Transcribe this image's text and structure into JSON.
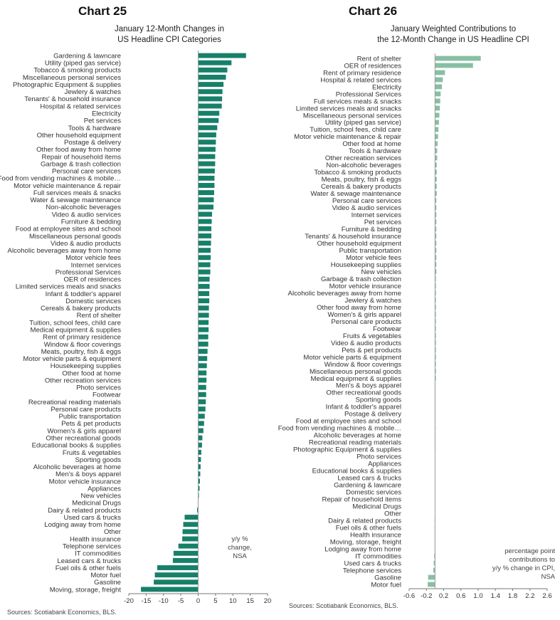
{
  "chart_data": [
    {
      "type": "bar",
      "orientation": "horizontal",
      "label": "Chart 25",
      "title": "January 12-Month Changes in\nUS Headline CPI Categories",
      "unit_note": "y/y %\nchange,\nNSA",
      "source": "Sources: Scotiabank Economics, BLS.",
      "xlim": [
        -20,
        20
      ],
      "xticks": [
        "-20",
        "-15",
        "-10",
        "-5",
        "0",
        "5",
        "10",
        "15",
        "20"
      ],
      "grid": false,
      "color": "#17806a",
      "categories": [
        "Gardening & lawncare",
        "Utility (piped gas service)",
        "Tobacco & smoking products",
        "Miscellaneous personal services",
        "Photographic Equipment & supplies",
        "Jewlery & watches",
        "Tenants' & household insurance",
        "Hospital & related services",
        "Electricity",
        "Pet services",
        "Tools & hardware",
        "Other household equipment",
        "Postage & delivery",
        "Other food away from home",
        "Repair of household items",
        "Garbage & trash collection",
        "Personal care services",
        "Food from vending machines & mobile…",
        "Motor vehicle maintenance & repair",
        "Full services meals & snacks",
        "Water & sewage maintenance",
        "Non-alcoholic beverages",
        "Video & audio services",
        "Furniture & bedding",
        "Food at employee sites and school",
        "Miscellaneous personal goods",
        "Video & audio products",
        "Alcoholic beverages away from home",
        "Motor vehicle fees",
        "Internet services",
        "Professional Services",
        "OER of residences",
        "Limited services meals and snacks",
        "Infant & toddler's apparel",
        "Domestic services",
        "Cereals & bakery products",
        "Rent of shelter",
        "Tuition, school fees, child care",
        "Medical equipment & supplies",
        "Rent of primary residence",
        "Window & floor coverings",
        "Meats, poultry, fish & eggs",
        "Motor vehicle parts & equipment",
        "Housekeeping supplies",
        "Other food at home",
        "Other recreation services",
        "Photo services",
        "Footwear",
        "Recreational reading materials",
        "Personal care products",
        "Public transportation",
        "Pets & pet products",
        "Women's & girls apparel",
        "Other recreational goods",
        "Educational books & supplies",
        "Fruits & vegetables",
        "Sporting goods",
        "Alcoholic beverages at home",
        "Men's & boys apparel",
        "Motor vehicle insurance",
        "Appliances",
        "New vehicles",
        "Medicinal Drugs",
        "Dairy & related products",
        "Used cars & trucks",
        "Lodging away from home",
        "Other",
        "Health insurance",
        "Telephone services",
        "IT commodities",
        "Leased cars & trucks",
        "Fuel oils & other fuels",
        "Motor fuel",
        "Gasoline",
        "Moving, storage, freight"
      ],
      "values": [
        13.8,
        9.6,
        8.4,
        8.0,
        7.3,
        7.0,
        6.9,
        6.8,
        6.1,
        5.9,
        5.5,
        5.2,
        5.1,
        5.0,
        4.9,
        4.9,
        4.8,
        4.7,
        4.7,
        4.6,
        4.5,
        4.4,
        4.0,
        3.9,
        3.8,
        3.8,
        3.7,
        3.6,
        3.6,
        3.5,
        3.5,
        3.3,
        3.3,
        3.2,
        3.2,
        3.1,
        3.1,
        3.0,
        3.0,
        2.9,
        2.9,
        2.7,
        2.6,
        2.5,
        2.4,
        2.4,
        2.3,
        2.3,
        2.2,
        2.1,
        1.9,
        1.7,
        1.5,
        1.2,
        1.1,
        0.9,
        0.8,
        0.7,
        0.6,
        0.5,
        0.4,
        0.2,
        0.1,
        -0.3,
        -3.9,
        -4.3,
        -4.5,
        -4.6,
        -5.7,
        -7.1,
        -7.3,
        -11.8,
        -12.5,
        -12.8,
        -16.5
      ]
    },
    {
      "type": "bar",
      "orientation": "horizontal",
      "label": "Chart 26",
      "title": "January Weighted Contributions to\nthe 12-Month Change in US Headline CPI",
      "unit_note": "percentage point\ncontributions to\ny/y % change in CPI,\nNSA",
      "source": "Sources: Scotiabank Economics, BLS.",
      "xlim": [
        -0.6,
        2.6
      ],
      "xticks": [
        "-0.6",
        "-0.2",
        "0.2",
        "0.6",
        "1.0",
        "1.4",
        "1.8",
        "2.2",
        "2.6"
      ],
      "grid": false,
      "color": "#88bfa4",
      "categories": [
        "Rent of shelter",
        "OER of residences",
        "Rent of  primary residence",
        "Hospital & related services",
        "Electricity",
        "Professional Services",
        "Full services meals & snacks",
        "Limited services meals and snacks",
        "Miscellaneous personal services",
        "Utility (piped gas service)",
        "Tuition, school fees, child care",
        "Motor vehicle maintenance & repair",
        "Other food at home",
        "Tools & hardware",
        "Other recreation services",
        "Non-alcoholic beverages",
        "Tobacco & smoking products",
        "Meats, poultry, fish & eggs",
        "Cereals & bakery products",
        "Water & sewage maintenance",
        "Personal care services",
        "Video & audio services",
        "Internet services",
        "Pet services",
        "Furniture & bedding",
        "Tenants' & household insurance",
        "Other household equipment",
        "Public transportation",
        "Motor vehicle fees",
        "Housekeeping supplies",
        "New vehicles",
        "Garbage & trash collection",
        "Motor vehicle insurance",
        "Alcoholic beverages away from home",
        "Jewlery & watches",
        "Other food away from home",
        "Women's & girls apparel",
        "Personal care products",
        "Footwear",
        "Fruits & vegetables",
        "Video & audio products",
        "Pets & pet products",
        "Motor vehicle parts & equipment",
        "Window & floor coverings",
        "Miscellaneous personal goods",
        "Medical equipment & supplies",
        "Men's & boys apparel",
        "Other recreational goods",
        "Sporting goods",
        "Infant & toddler's apparel",
        "Postage & delivery",
        "Food at employee sites and school",
        "Food from vending machines & mobile…",
        "Alcoholic beverages at home",
        "Recreational reading materials",
        "Photographic Equipment & supplies",
        "Photo services",
        "Appliances",
        "Educational books & supplies",
        "Leased cars & trucks",
        "Gardening & lawncare",
        "Domestic services",
        "Repair of household items",
        "Medicinal Drugs",
        "Other",
        "Dairy & related products",
        "Fuel oils & other fuels",
        "Health insurance",
        "Moving, storage, freight",
        "Lodging away from home",
        "IT commodities",
        "Used cars & trucks",
        "Telephone services",
        "Gasoline",
        "Motor fuel"
      ],
      "values": [
        1.06,
        0.88,
        0.23,
        0.18,
        0.16,
        0.13,
        0.12,
        0.11,
        0.1,
        0.09,
        0.08,
        0.07,
        0.06,
        0.05,
        0.05,
        0.04,
        0.04,
        0.04,
        0.04,
        0.04,
        0.03,
        0.03,
        0.03,
        0.03,
        0.03,
        0.03,
        0.03,
        0.03,
        0.03,
        0.03,
        0.03,
        0.02,
        0.02,
        0.02,
        0.02,
        0.02,
        0.02,
        0.02,
        0.02,
        0.02,
        0.02,
        0.02,
        0.02,
        0.02,
        0.02,
        0.02,
        0.01,
        0.01,
        0.01,
        0.01,
        0.01,
        0.01,
        0.01,
        0.01,
        0.01,
        0.01,
        0.0,
        0.0,
        0.0,
        0.0,
        0.0,
        0.0,
        0.0,
        0.0,
        0.0,
        -0.01,
        -0.01,
        -0.01,
        -0.01,
        -0.01,
        -0.02,
        -0.03,
        -0.04,
        -0.16,
        -0.17
      ]
    }
  ]
}
